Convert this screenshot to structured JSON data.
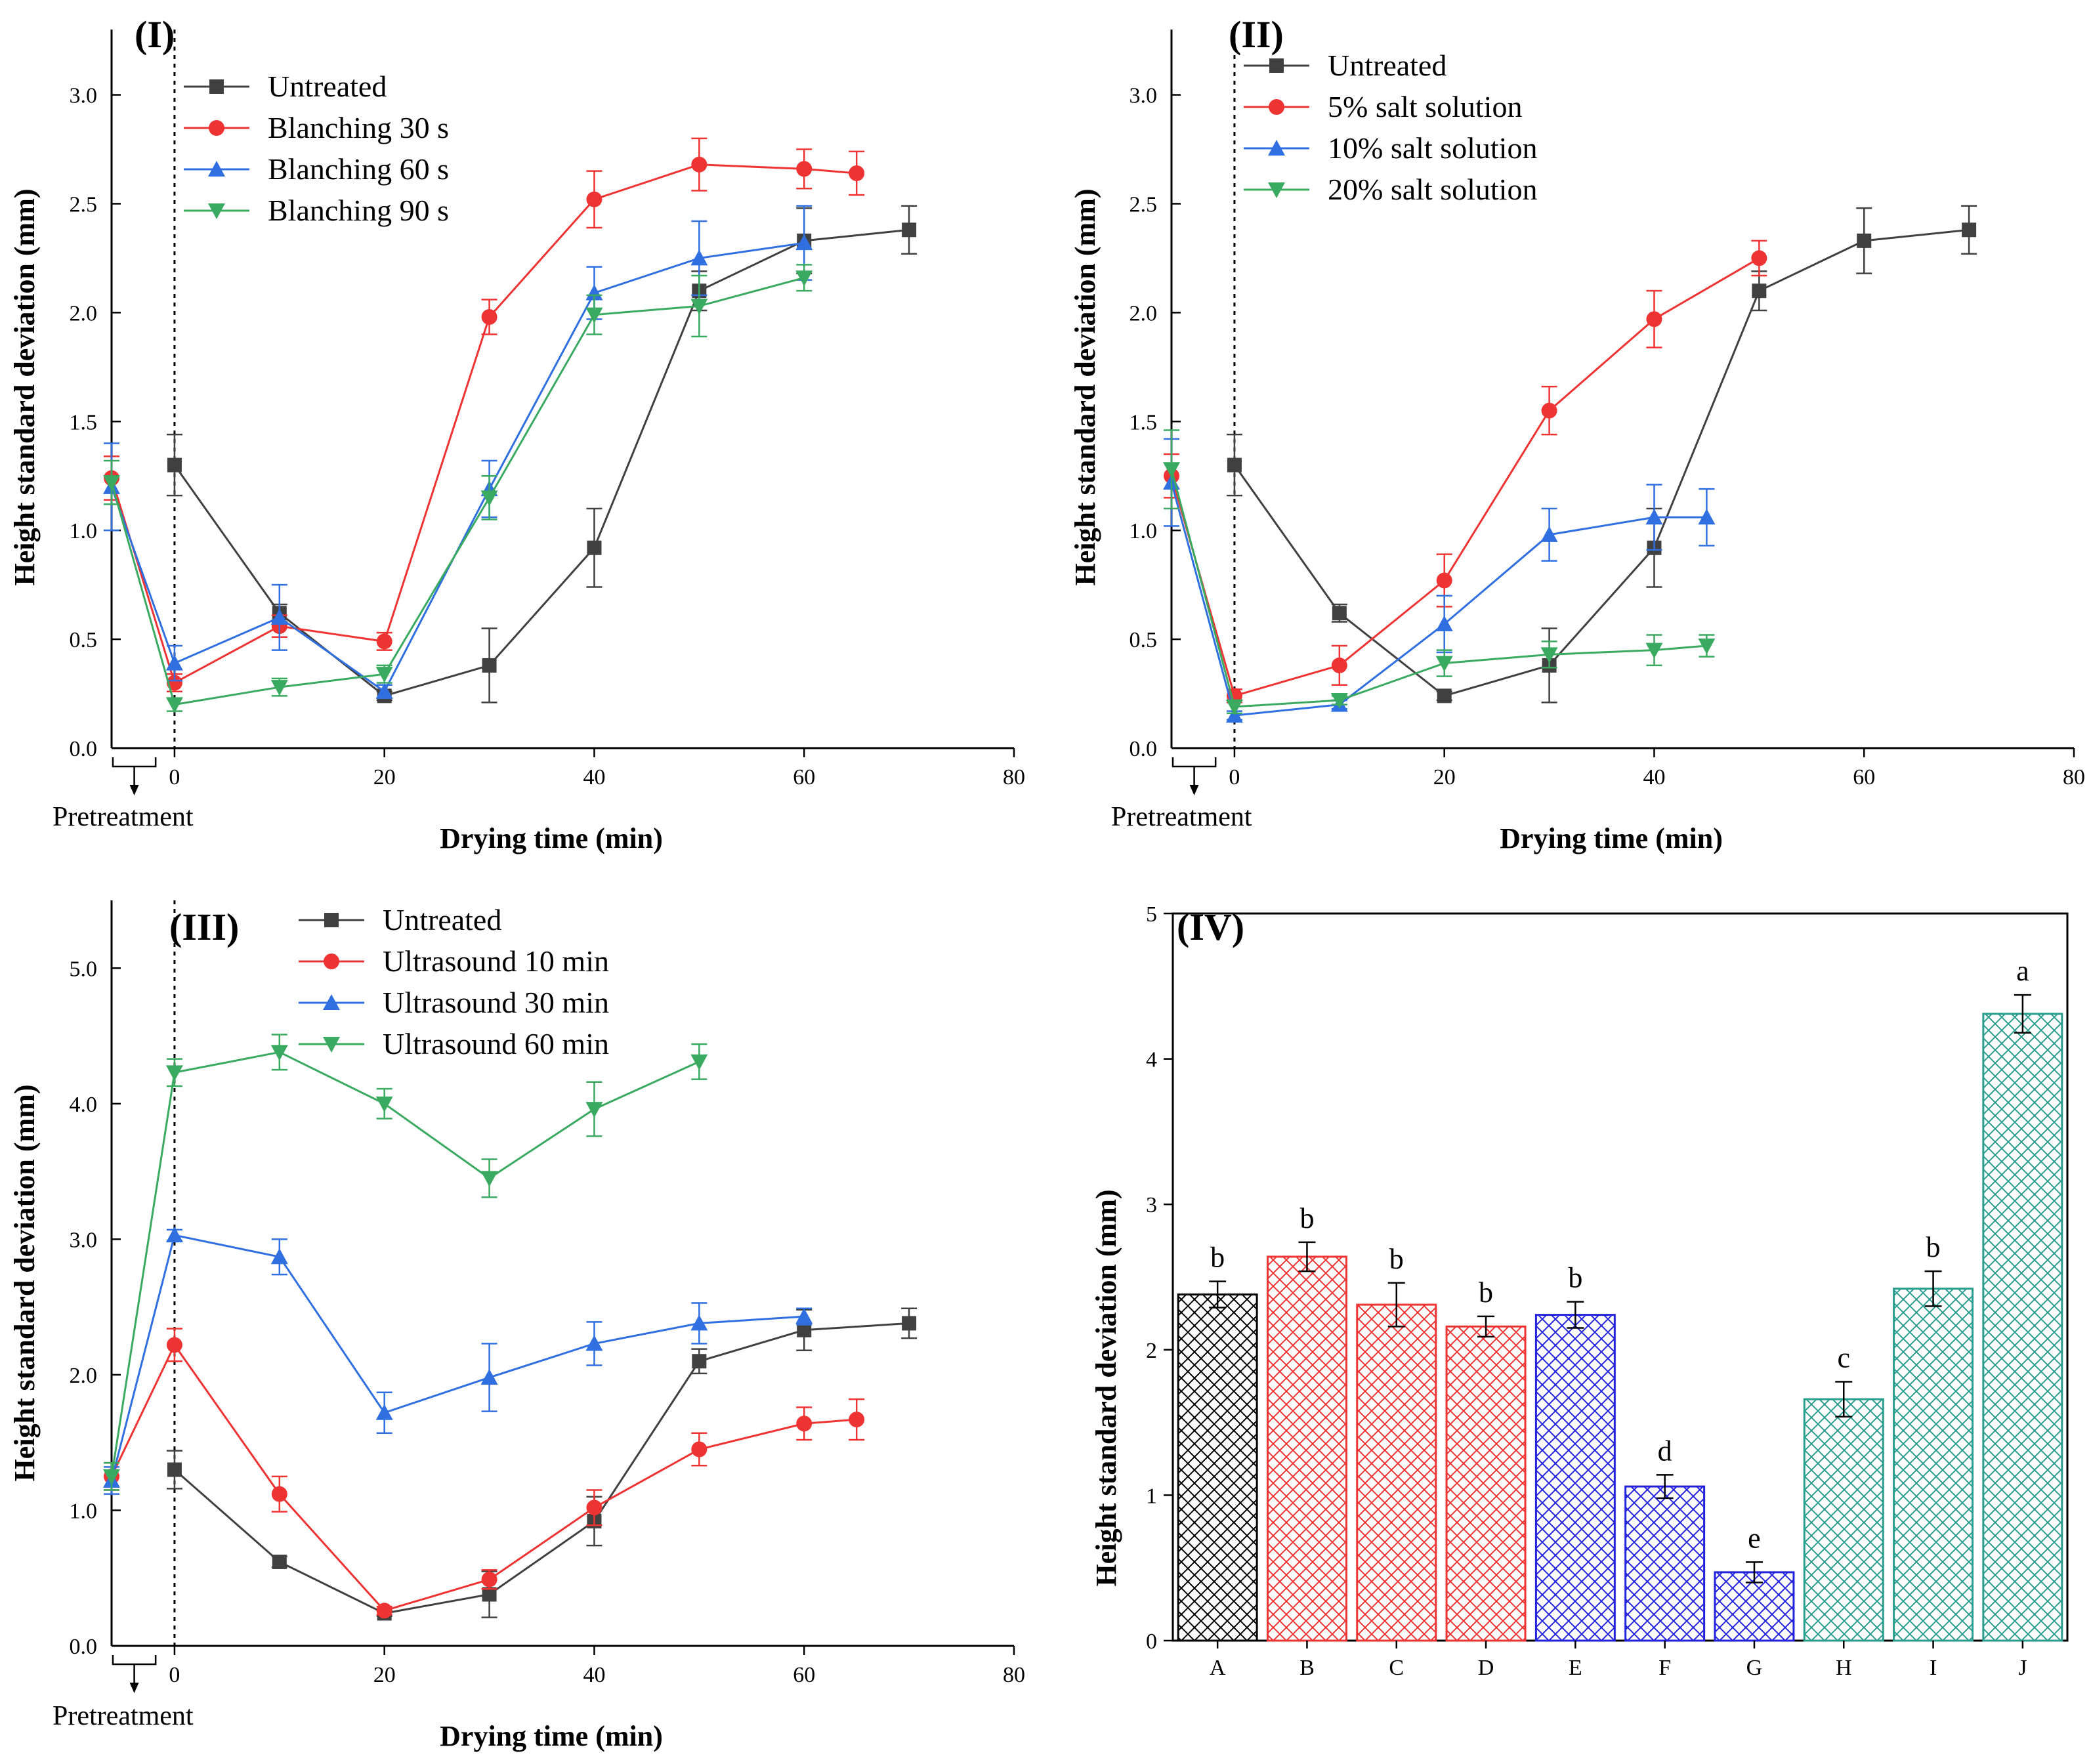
{
  "chart_data": [
    {
      "type": "line",
      "panel_label": "(I)",
      "xlabel": "Drying time (min)",
      "ylabel": "Height standard deviation (mm)",
      "pretreatment_label": "Pretreatment",
      "xlim": [
        -6,
        80
      ],
      "ylim": [
        0,
        3.3
      ],
      "xticks": [
        0,
        20,
        40,
        60,
        80
      ],
      "yticks": [
        0.0,
        0.5,
        1.0,
        1.5,
        2.0,
        2.5,
        3.0
      ],
      "legend_position": "top-left",
      "series": [
        {
          "name": "Untreated",
          "color": "#404040",
          "marker": "square",
          "x": [
            0,
            10,
            20,
            30,
            40,
            50,
            60,
            70
          ],
          "y": [
            1.3,
            0.62,
            0.24,
            0.38,
            0.92,
            2.1,
            2.33,
            2.38
          ],
          "err": [
            0.14,
            0.04,
            0.02,
            0.17,
            0.18,
            0.09,
            0.15,
            0.11
          ]
        },
        {
          "name": "Blanching 30 s",
          "color": "#ee3333",
          "marker": "circle",
          "x": [
            -6,
            0,
            10,
            20,
            30,
            40,
            50,
            60,
            65
          ],
          "y": [
            1.24,
            0.3,
            0.56,
            0.49,
            1.98,
            2.52,
            2.68,
            2.66,
            2.64
          ],
          "err": [
            0.1,
            0.04,
            0.05,
            0.04,
            0.08,
            0.13,
            0.12,
            0.09,
            0.1
          ]
        },
        {
          "name": "Blanching 60 s",
          "color": "#2f6fe0",
          "marker": "triangle-up",
          "x": [
            -6,
            0,
            10,
            20,
            30,
            40,
            50,
            60
          ],
          "y": [
            1.2,
            0.39,
            0.6,
            0.26,
            1.19,
            2.09,
            2.25,
            2.32
          ],
          "err": [
            0.2,
            0.08,
            0.15,
            0.03,
            0.13,
            0.12,
            0.17,
            0.17
          ]
        },
        {
          "name": "Blanching 90 s",
          "color": "#3aaa60",
          "marker": "triangle-down",
          "x": [
            -6,
            0,
            10,
            20,
            30,
            40,
            50,
            60
          ],
          "y": [
            1.22,
            0.2,
            0.28,
            0.34,
            1.15,
            1.99,
            2.03,
            2.16
          ],
          "err": [
            0.1,
            0.03,
            0.04,
            0.04,
            0.1,
            0.09,
            0.14,
            0.06
          ]
        }
      ]
    },
    {
      "type": "line",
      "panel_label": "(II)",
      "xlabel": "Drying time (min)",
      "ylabel": "Height standard deviation (mm)",
      "pretreatment_label": "Pretreatment",
      "xlim": [
        -6,
        80
      ],
      "ylim": [
        0,
        3.3
      ],
      "xticks": [
        0,
        20,
        40,
        60,
        80
      ],
      "yticks": [
        0.0,
        0.5,
        1.0,
        1.5,
        2.0,
        2.5,
        3.0
      ],
      "legend_position": "top-left",
      "series": [
        {
          "name": "Untreated",
          "color": "#404040",
          "marker": "square",
          "x": [
            0,
            10,
            20,
            30,
            40,
            50,
            60,
            70
          ],
          "y": [
            1.3,
            0.62,
            0.24,
            0.38,
            0.92,
            2.1,
            2.33,
            2.38
          ],
          "err": [
            0.14,
            0.04,
            0.02,
            0.17,
            0.18,
            0.09,
            0.15,
            0.11
          ]
        },
        {
          "name": "5% salt solution",
          "color": "#ee3333",
          "marker": "circle",
          "x": [
            -6,
            0,
            10,
            20,
            30,
            40,
            50
          ],
          "y": [
            1.25,
            0.24,
            0.38,
            0.77,
            1.55,
            1.97,
            2.25
          ],
          "err": [
            0.1,
            0.03,
            0.09,
            0.12,
            0.11,
            0.13,
            0.08
          ]
        },
        {
          "name": "10% salt solution",
          "color": "#2f6fe0",
          "marker": "triangle-up",
          "x": [
            -6,
            0,
            10,
            20,
            30,
            40,
            45
          ],
          "y": [
            1.22,
            0.15,
            0.2,
            0.57,
            0.98,
            1.06,
            1.06
          ],
          "err": [
            0.2,
            0.02,
            0.02,
            0.13,
            0.12,
            0.15,
            0.13
          ]
        },
        {
          "name": "20% salt solution",
          "color": "#3aaa60",
          "marker": "triangle-down",
          "x": [
            -6,
            0,
            10,
            20,
            30,
            40,
            45
          ],
          "y": [
            1.28,
            0.19,
            0.22,
            0.39,
            0.43,
            0.45,
            0.47
          ],
          "err": [
            0.18,
            0.03,
            0.02,
            0.06,
            0.06,
            0.07,
            0.05
          ]
        }
      ]
    },
    {
      "type": "line",
      "panel_label": "(III)",
      "xlabel": "Drying time (min)",
      "ylabel": "Height standard deviation (mm)",
      "pretreatment_label": "Pretreatment",
      "xlim": [
        -6,
        80
      ],
      "ylim": [
        0,
        5.5
      ],
      "xticks": [
        0,
        20,
        40,
        60,
        80
      ],
      "yticks": [
        0.0,
        1.0,
        2.0,
        3.0,
        4.0,
        5.0
      ],
      "legend_position": "top-center",
      "series": [
        {
          "name": "Untreated",
          "color": "#404040",
          "marker": "square",
          "x": [
            0,
            10,
            20,
            30,
            40,
            50,
            60,
            70
          ],
          "y": [
            1.3,
            0.62,
            0.24,
            0.38,
            0.92,
            2.1,
            2.33,
            2.38
          ],
          "err": [
            0.14,
            0.04,
            0.02,
            0.17,
            0.18,
            0.09,
            0.15,
            0.11
          ]
        },
        {
          "name": "Ultrasound 10 min",
          "color": "#ee3333",
          "marker": "circle",
          "x": [
            -6,
            0,
            10,
            20,
            30,
            40,
            50,
            60,
            65
          ],
          "y": [
            1.25,
            2.22,
            1.12,
            0.26,
            0.49,
            1.02,
            1.45,
            1.64,
            1.67
          ],
          "err": [
            0.1,
            0.12,
            0.13,
            0.03,
            0.07,
            0.13,
            0.12,
            0.12,
            0.15
          ]
        },
        {
          "name": "Ultrasound 30 min",
          "color": "#2f6fe0",
          "marker": "triangle-up",
          "x": [
            -6,
            0,
            10,
            20,
            30,
            40,
            50,
            60
          ],
          "y": [
            1.22,
            3.03,
            2.87,
            1.72,
            1.98,
            2.23,
            2.38,
            2.43
          ],
          "err": [
            0.1,
            0.04,
            0.13,
            0.15,
            0.25,
            0.16,
            0.15,
            0.06
          ]
        },
        {
          "name": "Ultrasound 60 min",
          "color": "#3aaa60",
          "marker": "triangle-down",
          "x": [
            -6,
            0,
            10,
            20,
            30,
            40,
            50
          ],
          "y": [
            1.25,
            4.23,
            4.38,
            4.0,
            3.45,
            3.96,
            4.31
          ],
          "err": [
            0.1,
            0.1,
            0.13,
            0.11,
            0.14,
            0.2,
            0.13
          ]
        }
      ]
    },
    {
      "type": "bar",
      "panel_label": "(IV)",
      "xlabel": "",
      "ylabel": "Height standard deviation (mm)",
      "ylim": [
        0,
        5
      ],
      "yticks": [
        0,
        1,
        2,
        3,
        4,
        5
      ],
      "categories": [
        "A",
        "B",
        "C",
        "D",
        "E",
        "F",
        "G",
        "H",
        "I",
        "J"
      ],
      "values": [
        2.38,
        2.64,
        2.31,
        2.16,
        2.24,
        1.06,
        0.47,
        1.66,
        2.42,
        4.31
      ],
      "errors": [
        0.09,
        0.1,
        0.15,
        0.07,
        0.09,
        0.08,
        0.07,
        0.12,
        0.12,
        0.13
      ],
      "letters": [
        "b",
        "b",
        "b",
        "b",
        "b",
        "d",
        "e",
        "c",
        "b",
        "a"
      ],
      "colors": [
        "#000000",
        "#ee3333",
        "#ee3333",
        "#ee3333",
        "#2222dd",
        "#2222dd",
        "#2222dd",
        "#2a9d8f",
        "#2a9d8f",
        "#2a9d8f"
      ]
    }
  ]
}
